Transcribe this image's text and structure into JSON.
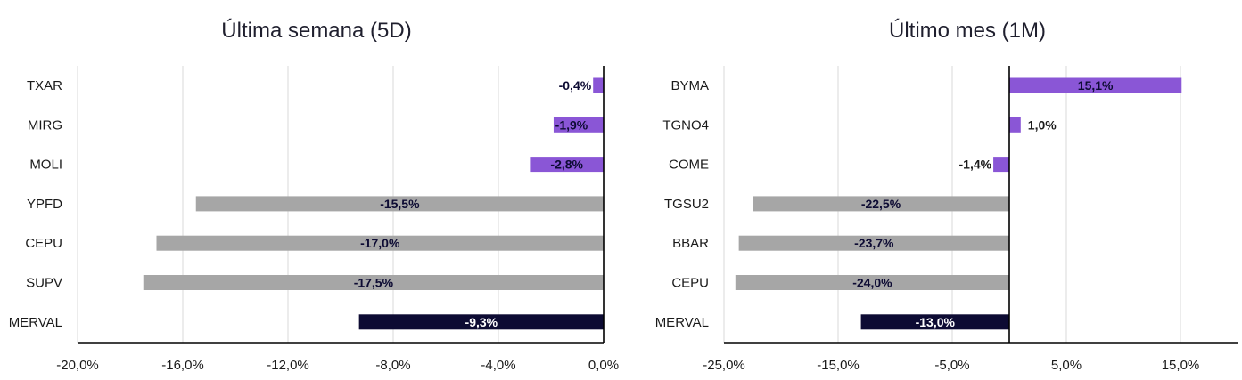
{
  "chart_data": [
    {
      "type": "bar",
      "orientation": "horizontal",
      "title": "Última semana (5D)",
      "categories": [
        "TXAR",
        "MIRG",
        "MOLI",
        "YPFD",
        "CEPU",
        "SUPV",
        "MERVAL"
      ],
      "values": [
        -0.4,
        -1.9,
        -2.8,
        -15.5,
        -17.0,
        -17.5,
        -9.3
      ],
      "data_labels": [
        "-0,4%",
        "-1,9%",
        "-2,8%",
        "-15,5%",
        "-17,0%",
        "-17,5%",
        "-9,3%"
      ],
      "bar_colors": [
        "#8a56d6",
        "#8a56d6",
        "#8a56d6",
        "#a6a6a6",
        "#a6a6a6",
        "#a6a6a6",
        "#0d0b33"
      ],
      "label_colors": [
        "#0d0b33",
        "#0d0b33",
        "#0d0b33",
        "#0d0b33",
        "#0d0b33",
        "#0d0b33",
        "#ffffff"
      ],
      "xlim": [
        -20,
        0
      ],
      "x_ticks": [
        -20,
        -16,
        -12,
        -8,
        -4,
        0
      ],
      "x_tick_labels": [
        "-20,0%",
        "-16,0%",
        "-12,0%",
        "-8,0%",
        "-4,0%",
        "0,0%"
      ],
      "grid": true,
      "legend": "none"
    },
    {
      "type": "bar",
      "orientation": "horizontal",
      "title": "Último mes (1M)",
      "categories": [
        "BYMA",
        "TGNO4",
        "COME",
        "TGSU2",
        "BBAR",
        "CEPU",
        "MERVAL"
      ],
      "values": [
        15.1,
        1.0,
        -1.4,
        -22.5,
        -23.7,
        -24.0,
        -13.0
      ],
      "data_labels": [
        "15,1%",
        "1,0%",
        "-1,4%",
        "-22,5%",
        "-23,7%",
        "-24,0%",
        "-13,0%"
      ],
      "bar_colors": [
        "#8a56d6",
        "#8a56d6",
        "#8a56d6",
        "#a6a6a6",
        "#a6a6a6",
        "#a6a6a6",
        "#0d0b33"
      ],
      "label_colors": [
        "#0d0b33",
        "#1a1a1a",
        "#1a1a1a",
        "#0d0b33",
        "#0d0b33",
        "#0d0b33",
        "#ffffff"
      ],
      "xlim": [
        -25,
        20
      ],
      "x_ticks": [
        -25,
        -15,
        -5,
        5,
        15
      ],
      "x_tick_labels": [
        "-25,0%",
        "-15,0%",
        "-5,0%",
        "5,0%",
        "15,0%"
      ],
      "grid": true,
      "legend": "none"
    }
  ]
}
